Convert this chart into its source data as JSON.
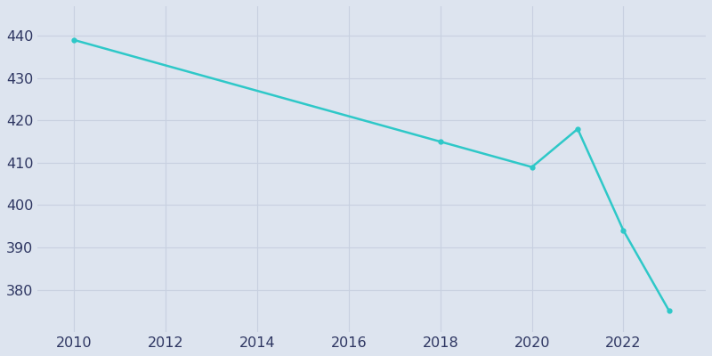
{
  "years": [
    2010,
    2018,
    2020,
    2021,
    2022,
    2023
  ],
  "population": [
    439,
    415,
    409,
    418,
    394,
    375
  ],
  "line_color": "#2ec8c8",
  "marker": "o",
  "marker_size": 3.5,
  "line_width": 1.8,
  "bg_color": "#dde4ef",
  "grid_color": "#c8d0e0",
  "xlim": [
    2009.2,
    2023.8
  ],
  "ylim": [
    370,
    447
  ],
  "yticks": [
    380,
    390,
    400,
    410,
    420,
    430,
    440
  ],
  "xticks": [
    2010,
    2012,
    2014,
    2016,
    2018,
    2020,
    2022
  ],
  "tick_label_color": "#2d3561",
  "tick_fontsize": 11.5
}
